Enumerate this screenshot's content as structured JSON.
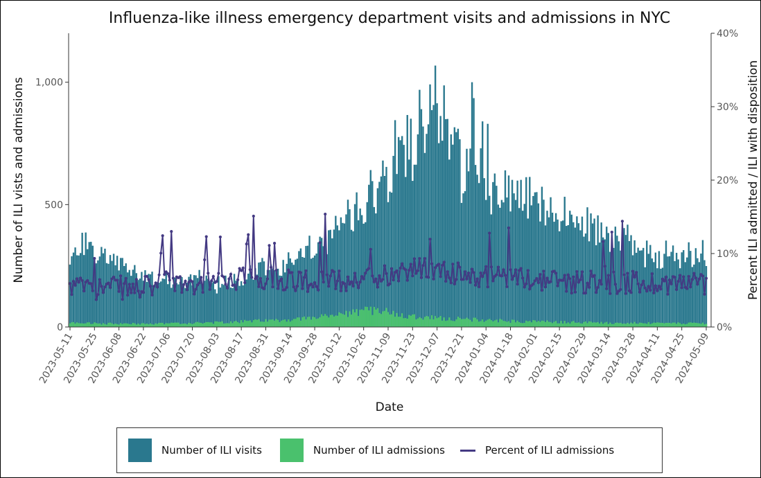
{
  "chart_data": {
    "type": "bar",
    "title": "Influenza-like illness emergency department visits and admissions in NYC",
    "xlabel": "Date",
    "ylabel": "Number of ILI vists and admissions",
    "y2label": "Percent ILI admitted / ILI with disposition",
    "ylim": [
      0,
      1200
    ],
    "y2lim": [
      0,
      40
    ],
    "y_ticks": [
      {
        "value": 0,
        "label": "0"
      },
      {
        "value": 500,
        "label": "500"
      },
      {
        "value": 1000,
        "label": "1,000"
      }
    ],
    "y2_ticks": [
      {
        "value": 0,
        "label": "0%"
      },
      {
        "value": 10,
        "label": "10%"
      },
      {
        "value": 20,
        "label": "20%"
      },
      {
        "value": 30,
        "label": "30%"
      },
      {
        "value": 40,
        "label": "40%"
      }
    ],
    "x_tick_labels": [
      "2023-05-11",
      "2023-05-25",
      "2023-06-08",
      "2023-06-22",
      "2023-07-06",
      "2023-07-20",
      "2023-08-03",
      "2023-08-17",
      "2023-08-31",
      "2023-09-14",
      "2023-09-28",
      "2023-10-12",
      "2023-10-26",
      "2023-11-09",
      "2023-11-23",
      "2023-12-07",
      "2023-12-21",
      "2024-01-04",
      "2024-01-18",
      "2024-02-01",
      "2024-02-15",
      "2024-02-29",
      "2024-03-14",
      "2024-03-28",
      "2024-04-11",
      "2024-04-25",
      "2024-05-09"
    ],
    "start_date": "2023-05-11",
    "weekly_visits": [
      260,
      340,
      305,
      270,
      255,
      235,
      205,
      195,
      190,
      185,
      195,
      180,
      175,
      190,
      200,
      210,
      245,
      235,
      265,
      290,
      300,
      370,
      400,
      445,
      505,
      580,
      640,
      730,
      760,
      840,
      930,
      780,
      650,
      600,
      570,
      545,
      540,
      530,
      510,
      485,
      465,
      445,
      425,
      400,
      375,
      350,
      330,
      305,
      290
    ],
    "weekly_admissions": [
      17,
      16,
      15,
      14,
      14,
      13,
      13,
      13,
      14,
      15,
      16,
      17,
      18,
      20,
      22,
      24,
      26,
      28,
      30,
      34,
      38,
      42,
      48,
      56,
      64,
      70,
      60,
      52,
      45,
      40,
      37,
      34,
      32,
      30,
      28,
      26,
      24,
      23,
      22,
      21,
      20,
      20,
      19,
      18,
      17,
      17,
      16,
      16,
      15
    ],
    "weekly_percent": [
      5.5,
      5.3,
      5.3,
      5.4,
      5.4,
      5.2,
      5.3,
      5.6,
      6.0,
      5.8,
      5.9,
      6.2,
      6.4,
      6.6,
      6.7,
      6.6,
      6.8,
      6.7,
      6.5,
      6.4,
      6.3,
      6.2,
      6.3,
      6.4,
      6.6,
      6.9,
      7.2,
      7.8,
      8.0,
      7.8,
      7.6,
      7.4,
      7.2,
      7.0,
      6.9,
      6.8,
      6.7,
      6.6,
      6.5,
      6.4,
      6.3,
      6.2,
      6.2,
      6.2,
      6.1,
      6.1,
      6.0,
      6.0,
      6.0
    ],
    "series": [
      {
        "name": "Number of ILI visits",
        "color": "#2a788e",
        "axis": "left"
      },
      {
        "name": "Number of ILI admissions",
        "color": "#4ac16d",
        "axis": "left"
      },
      {
        "name": "Percent of ILI admissions",
        "color": "#443a83",
        "axis": "right"
      }
    ],
    "legend": {
      "position": "bottom"
    }
  }
}
